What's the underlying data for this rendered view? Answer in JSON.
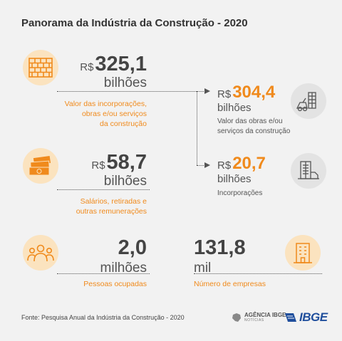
{
  "title": "Panorama da Indústria da Construção - 2020",
  "block1": {
    "currency": "R$",
    "value": "325,1",
    "unit": "bilhões",
    "desc_lines": [
      "Valor das incorporações,",
      "obras e/ou serviços",
      "da construção"
    ],
    "icon": "brick-wall-icon"
  },
  "block2": {
    "currency": "R$",
    "value": "304,4",
    "unit": "bilhões",
    "desc_lines": [
      "Valor das obras e/ou",
      "serviços da construção"
    ],
    "icon": "construction-site-icon"
  },
  "block3": {
    "currency": "R$",
    "value": "20,7",
    "unit": "bilhões",
    "desc_lines": [
      "Incorporações"
    ],
    "icon": "building-crane-icon"
  },
  "block4": {
    "currency": "R$",
    "value": "58,7",
    "unit": "bilhões",
    "desc_lines": [
      "Salários, retiradas e",
      "outras remunerações"
    ],
    "icon": "money-stack-icon"
  },
  "block5": {
    "value": "2,0",
    "unit": "milhões",
    "desc": "Pessoas ocupadas",
    "icon": "people-group-icon"
  },
  "block6": {
    "value": "131,8",
    "unit": "mil",
    "desc": "Número de empresas",
    "icon": "office-building-icon"
  },
  "footer": "Fonte: Pesquisa Anual da Indústria da Construção - 2020",
  "logos": {
    "agencia": "AGÊNCIA IBGE",
    "agencia_sub": "NOTÍCIAS",
    "ibge": "IBGE"
  },
  "colors": {
    "accent": "#f08a1c",
    "circle_light": "#fbe3bf",
    "circle_gray": "#e3e3e3",
    "ibge_blue": "#1f4e9c"
  }
}
